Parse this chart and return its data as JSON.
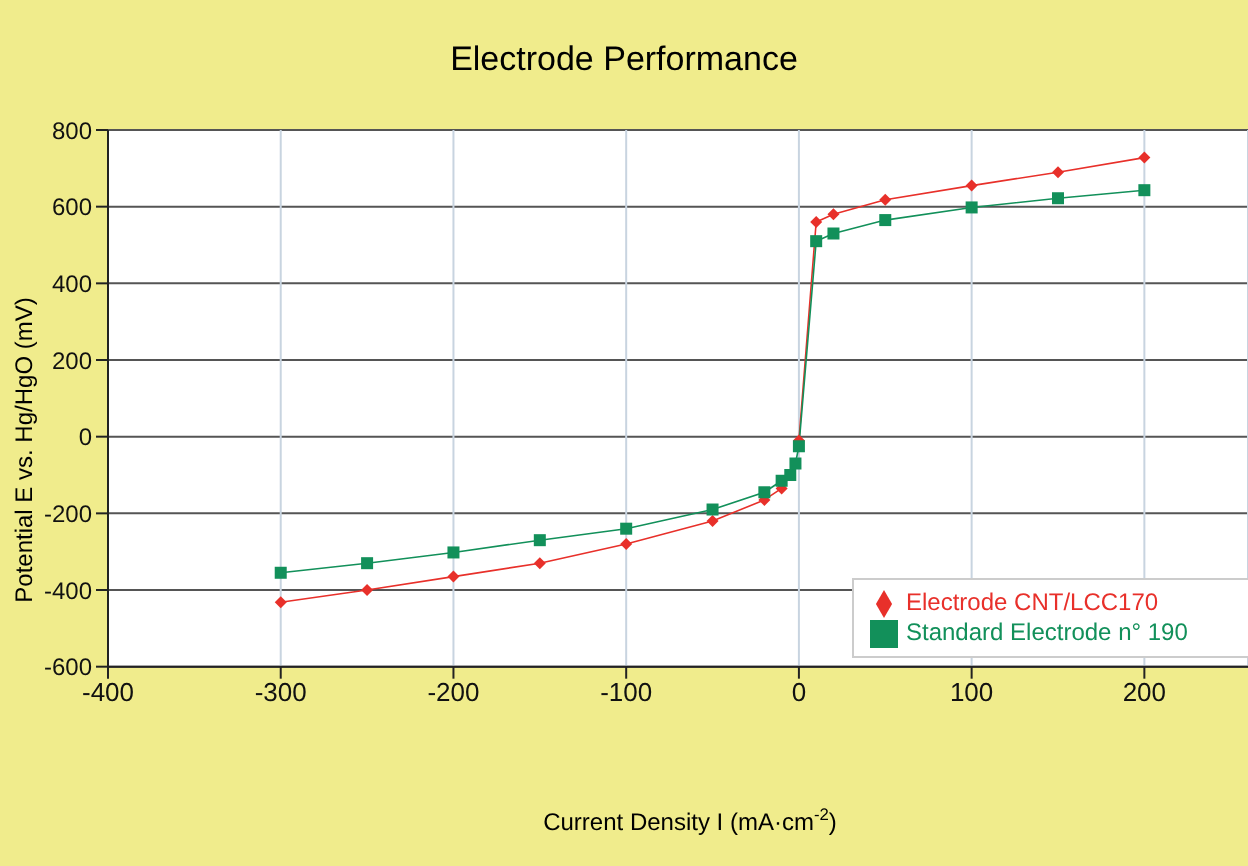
{
  "chart_data": {
    "type": "line",
    "title": "Electrode Performance",
    "xlabel": "Current Density I (mA·cm$^{-2}$)",
    "ylabel": "Potential E vs. Hg/HgO (mV)",
    "xlim": [
      -400,
      260
    ],
    "xticks": [
      -400,
      -300,
      -200,
      -100,
      0,
      100,
      200
    ],
    "ylim": [
      -600,
      800
    ],
    "yticks": [
      -600,
      -400,
      -200,
      0,
      200,
      400,
      600,
      800
    ],
    "grid": true,
    "legend": "bottom right",
    "line_style": "solid",
    "series": [
      {
        "name": "Electrode CNT/LCC170",
        "color": "#e8302a",
        "marker": "diamond",
        "x": [
          -300,
          -250,
          -200,
          -150,
          -100,
          -50,
          -20,
          -10,
          -5,
          -2,
          0,
          10,
          20,
          50,
          100,
          150,
          200
        ],
        "values": [
          -432,
          -400,
          -365,
          -330,
          -280,
          -220,
          -165,
          -135,
          null,
          null,
          -10,
          560,
          580,
          618,
          655,
          690,
          728
        ]
      },
      {
        "name": "Standard Electrode n° 190",
        "color": "#12905a",
        "marker": "square",
        "x": [
          -300,
          -250,
          -200,
          -150,
          -100,
          -50,
          -20,
          -10,
          -5,
          -2,
          0,
          10,
          20,
          50,
          100,
          150,
          200
        ],
        "values": [
          -355,
          -330,
          -302,
          -270,
          -240,
          -190,
          -145,
          -115,
          -100,
          -70,
          -25,
          510,
          530,
          565,
          598,
          622,
          643
        ]
      }
    ]
  }
}
